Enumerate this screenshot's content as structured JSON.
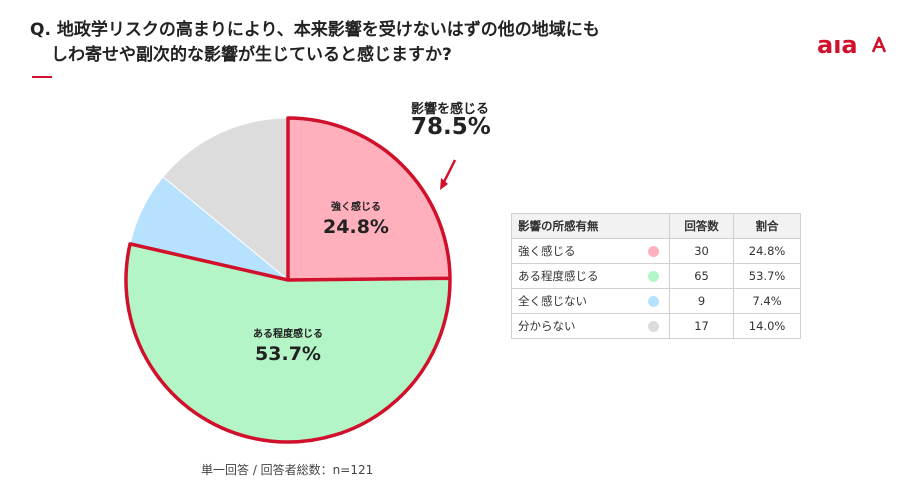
{
  "title": {
    "line1": "Q. 地政学リスクの高まりにより、本来影響を受けないはずの他の地域にも",
    "line2": "しわ寄せや副次的な影響が生じていると感じますか?"
  },
  "logo": {
    "text": "aıa",
    "icon": "a-logo-icon",
    "color": "#d1102b"
  },
  "callout": {
    "label": "影響を感じる",
    "value": "78.5%"
  },
  "slice_labels": [
    {
      "name": "強く感じる",
      "value": "24.8%"
    },
    {
      "name": "ある程度感じる",
      "value": "53.7%"
    }
  ],
  "table": {
    "headers": [
      "影響の所感有無",
      "回答数",
      "割合"
    ],
    "rows": [
      {
        "label": "強く感じる",
        "count": "30",
        "percent": "24.8%",
        "color": "#ffb0bc"
      },
      {
        "label": "ある程度感じる",
        "count": "65",
        "percent": "53.7%",
        "color": "#b3f5c6"
      },
      {
        "label": "全く感じない",
        "count": "9",
        "percent": "7.4%",
        "color": "#b7e2ff"
      },
      {
        "label": "分からない",
        "count": "17",
        "percent": "14.0%",
        "color": "#dcdcdc"
      }
    ]
  },
  "footnote": "単一回答 / 回答者総数：n=121",
  "chart_data": {
    "type": "pie",
    "categories": [
      "強く感じる",
      "ある程度感じる",
      "全く感じない",
      "分からない"
    ],
    "values": [
      24.8,
      53.7,
      7.4,
      14.0
    ],
    "counts": [
      30,
      65,
      9,
      17
    ],
    "colors": [
      "#ffb0bc",
      "#b3f5c6",
      "#b7e2ff",
      "#dcdcdc"
    ],
    "highlight": {
      "categories": [
        "強く感じる",
        "ある程度感じる"
      ],
      "total": "78.5%",
      "outline_color": "#d1102b"
    },
    "start": "12 o'clock, clockwise"
  }
}
